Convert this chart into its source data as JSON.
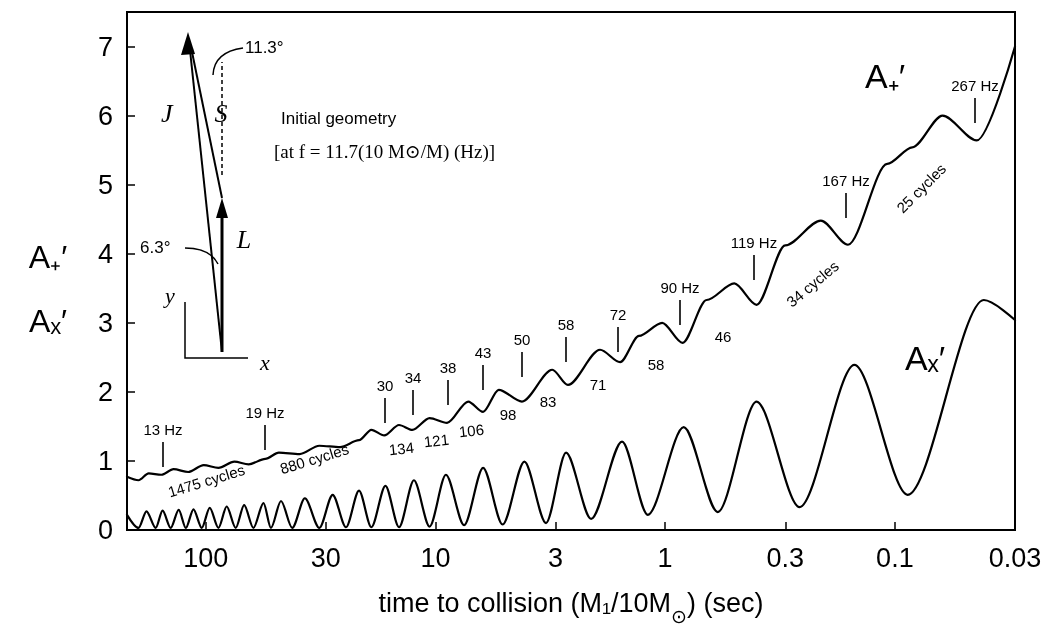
{
  "chart_data": {
    "type": "line",
    "xlabel": "time to collision (M₁/10M$_{⊙}$) (sec)",
    "ylabel": "A₊′ Aₓ′",
    "log": "x",
    "xlim": [
      220,
      0.03
    ],
    "xticks": [
      100,
      30,
      10,
      3,
      1,
      0.3,
      0.1,
      0.03
    ],
    "ylim": [
      0,
      7.5
    ],
    "yticks": [
      0,
      1,
      2,
      3,
      4,
      5,
      6,
      7
    ],
    "grid": false,
    "legend": false,
    "marker": "none",
    "line_style": "solid",
    "series": [
      {
        "name": "A₊′",
        "color": "#000000",
        "x": [
          220,
          196,
          177,
          156,
          138,
          119,
          102,
          88,
          75,
          65,
          55,
          48,
          39,
          32,
          26,
          21.5,
          19,
          16.7,
          14.4,
          12.6,
          10.6,
          8.9,
          7.2,
          6.2,
          5.3,
          4.2,
          3.1,
          2.65,
          1.92,
          1.57,
          1.3,
          1.03,
          0.84,
          0.66,
          0.5,
          0.4,
          0.3,
          0.21,
          0.16,
          0.108,
          0.084,
          0.062,
          0.044,
          0.03
        ],
        "values": [
          0.77,
          0.72,
          0.82,
          0.8,
          0.88,
          0.84,
          0.94,
          0.9,
          0.99,
          0.95,
          1.03,
          1.12,
          1.1,
          1.22,
          1.2,
          1.3,
          1.45,
          1.37,
          1.52,
          1.45,
          1.62,
          1.55,
          1.86,
          1.71,
          2.03,
          1.86,
          2.32,
          2.1,
          2.61,
          2.43,
          2.81,
          3.0,
          2.71,
          3.33,
          3.57,
          3.26,
          4.12,
          4.48,
          4.13,
          5.3,
          5.54,
          6.0,
          5.64,
          7.0
        ]
      },
      {
        "name": "Aₓ′",
        "color": "#000000",
        "x": [
          220,
          196,
          181,
          165,
          154,
          142,
          131,
          122,
          113,
          104,
          96,
          88,
          81,
          74,
          68,
          62,
          56,
          52,
          47,
          42,
          37,
          32,
          28,
          24.5,
          21.5,
          19,
          16.5,
          14.4,
          12.4,
          10.6,
          9.0,
          7.5,
          6.2,
          5.1,
          4.1,
          3.3,
          2.7,
          2.1,
          1.54,
          1.19,
          0.83,
          0.59,
          0.4,
          0.26,
          0.15,
          0.088,
          0.041,
          0.03
        ],
        "values": [
          0.22,
          0.03,
          0.27,
          0.03,
          0.28,
          0.03,
          0.29,
          0.03,
          0.3,
          0.03,
          0.32,
          0.03,
          0.34,
          0.03,
          0.36,
          0.03,
          0.39,
          0.03,
          0.42,
          0.03,
          0.46,
          0.03,
          0.51,
          0.04,
          0.57,
          0.04,
          0.64,
          0.04,
          0.72,
          0.05,
          0.8,
          0.07,
          0.9,
          0.08,
          0.99,
          0.1,
          1.12,
          0.16,
          1.28,
          0.22,
          1.49,
          0.26,
          1.86,
          0.33,
          2.39,
          0.51,
          3.33,
          3.04
        ]
      }
    ],
    "annotations": [
      "13 Hz",
      "19 Hz",
      "30",
      "34",
      "38",
      "43",
      "50",
      "58",
      "72",
      "90 Hz",
      "119 Hz",
      "167 Hz",
      "267 Hz",
      "Initial geometry",
      "[at f = 11.7(10 M⊙/M) (Hz)]",
      "11.3°",
      "6.3°",
      "J⃗",
      "S⃗",
      "L⃗",
      "y",
      "x",
      "1475 cycles",
      "880 cycles",
      "134",
      "121",
      "106",
      "98",
      "83",
      "71",
      "58",
      "46",
      "34 cycles",
      "25 cycles"
    ]
  }
}
